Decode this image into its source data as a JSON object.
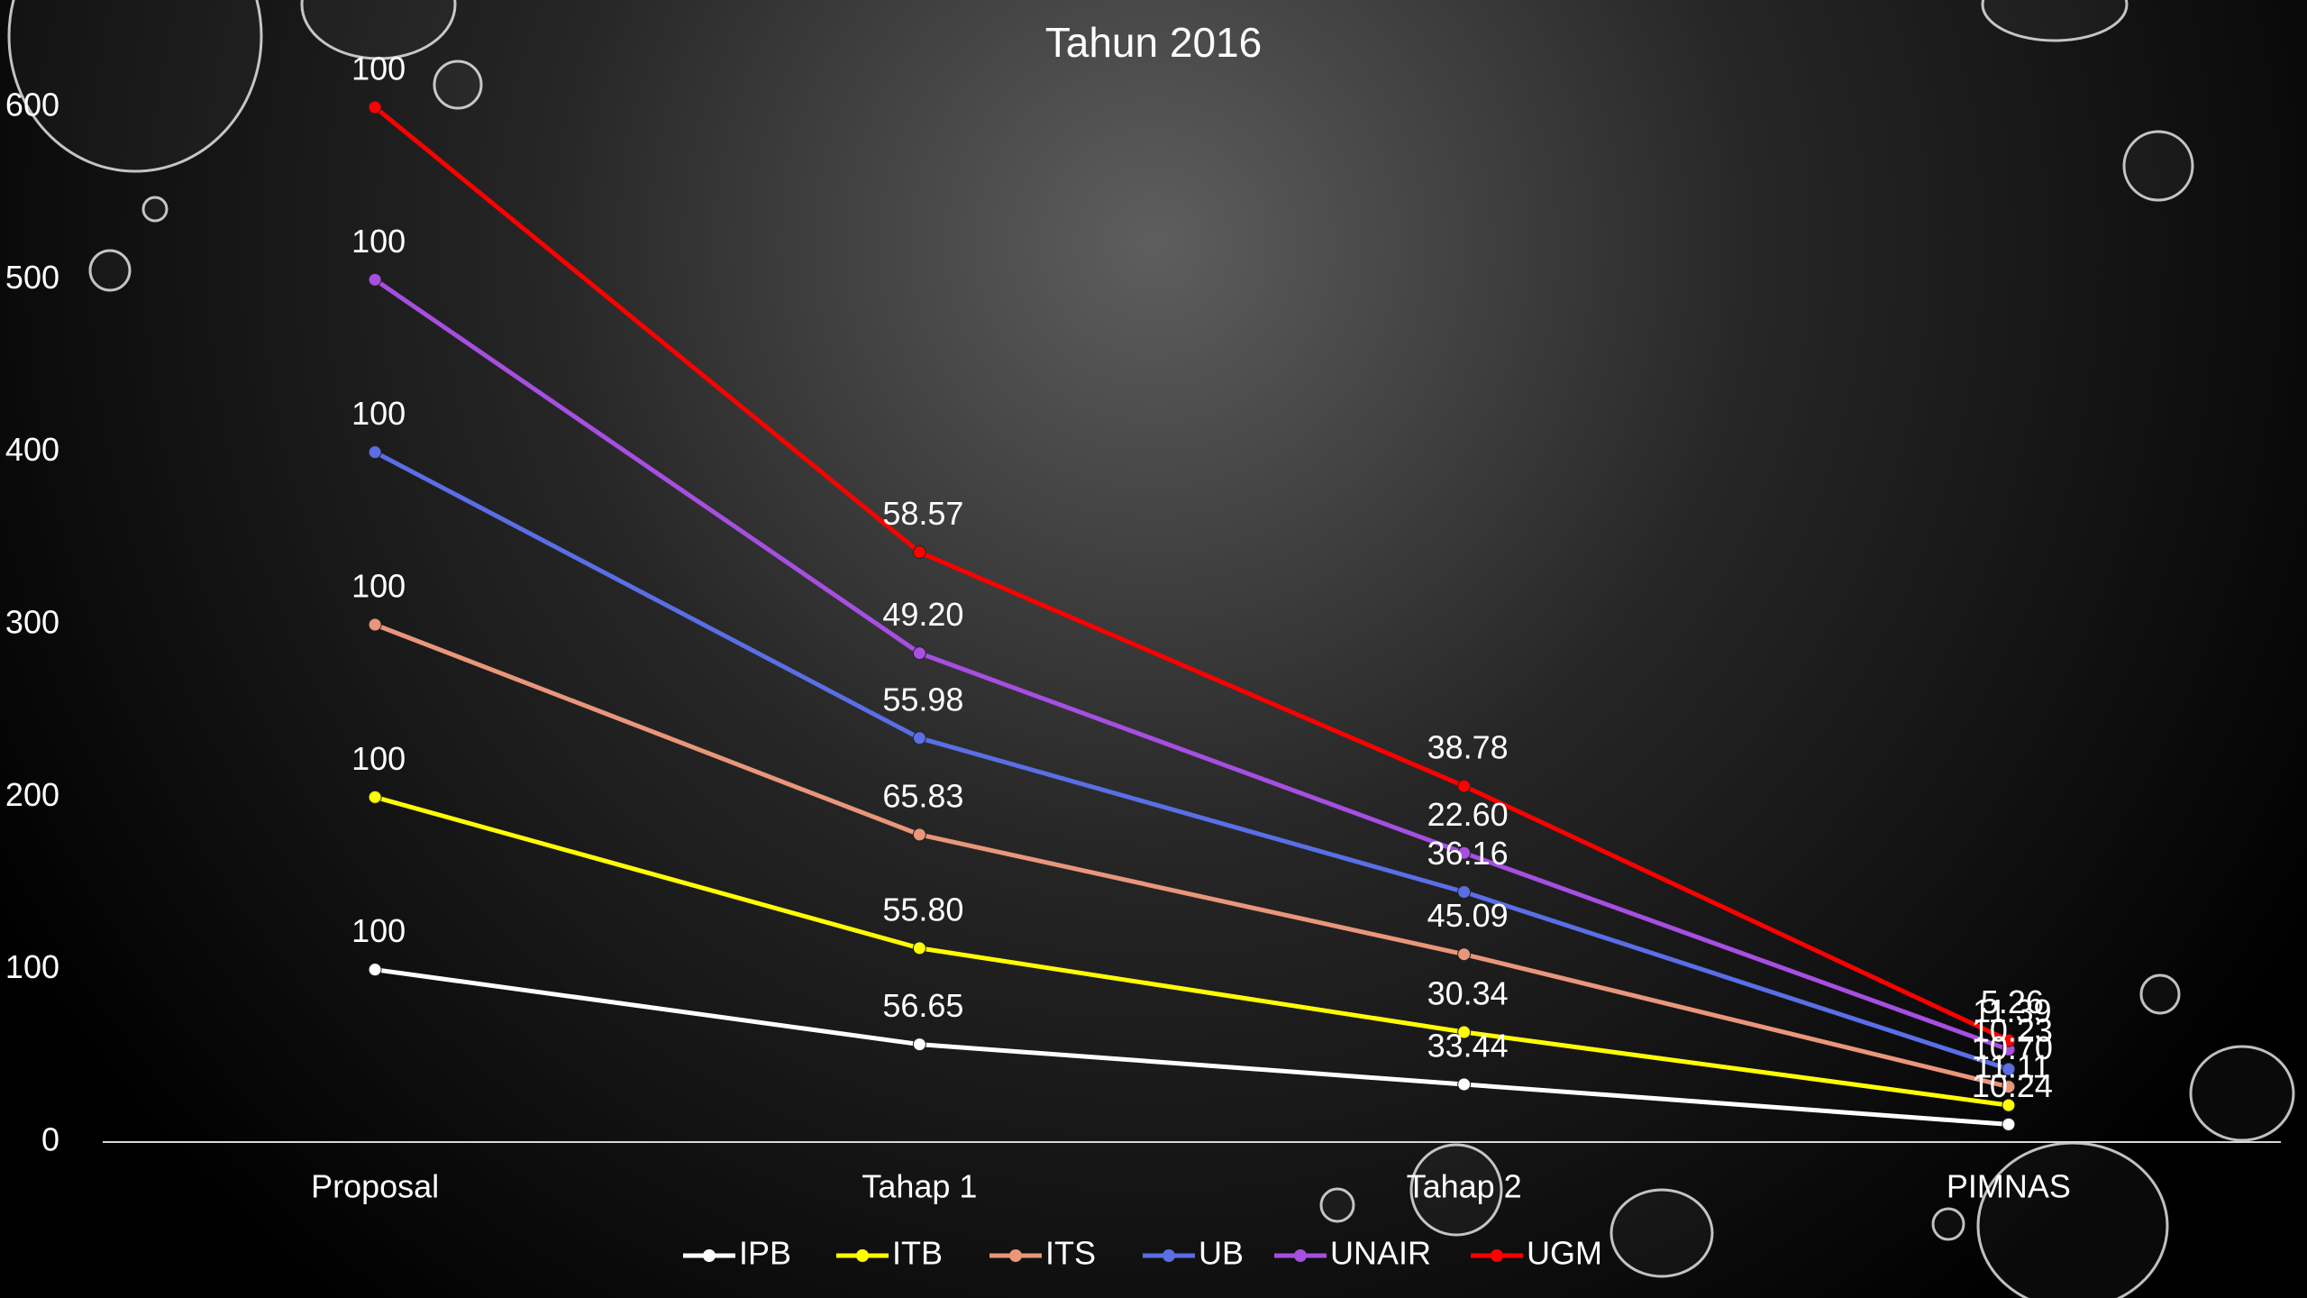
{
  "chart_data": {
    "type": "line",
    "stacked": true,
    "title": "Tahun 2016",
    "categories": [
      "Proposal",
      "Tahap 1",
      "Tahap 2",
      "PIMNAS"
    ],
    "ylim": [
      0,
      600
    ],
    "yticks": [
      0,
      100,
      200,
      300,
      400,
      500,
      600
    ],
    "grid": false,
    "legend": "bottom",
    "series": [
      {
        "name": "IPB",
        "color": "#ffffff",
        "values": [
          100,
          56.65,
          33.44,
          10.24
        ],
        "value_labels": [
          "100",
          "56.65",
          "33.44",
          "10.24"
        ]
      },
      {
        "name": "ITB",
        "color": "#ffff00",
        "values": [
          100,
          55.8,
          30.34,
          11.11
        ],
        "value_labels": [
          "100",
          "55.80",
          "30.34",
          "11.11"
        ]
      },
      {
        "name": "ITS",
        "color": "#e9967a",
        "values": [
          100,
          65.83,
          45.09,
          10.7
        ],
        "value_labels": [
          "100",
          "65.83",
          "45.09",
          "10.70"
        ]
      },
      {
        "name": "UB",
        "color": "#5a6ee6",
        "values": [
          100,
          55.98,
          36.16,
          10.23
        ],
        "value_labels": [
          "100",
          "55.98",
          "36.16",
          "10.23"
        ]
      },
      {
        "name": "UNAIR",
        "color": "#a64fe0",
        "values": [
          100,
          49.2,
          22.6,
          11.39
        ],
        "value_labels": [
          "100",
          "49.20",
          "22.60",
          "11.39"
        ]
      },
      {
        "name": "UGM",
        "color": "#ff0000",
        "values": [
          100,
          58.57,
          38.78,
          5.26
        ],
        "value_labels": [
          "100",
          "58.57",
          "38.78",
          "5.26"
        ]
      }
    ]
  }
}
